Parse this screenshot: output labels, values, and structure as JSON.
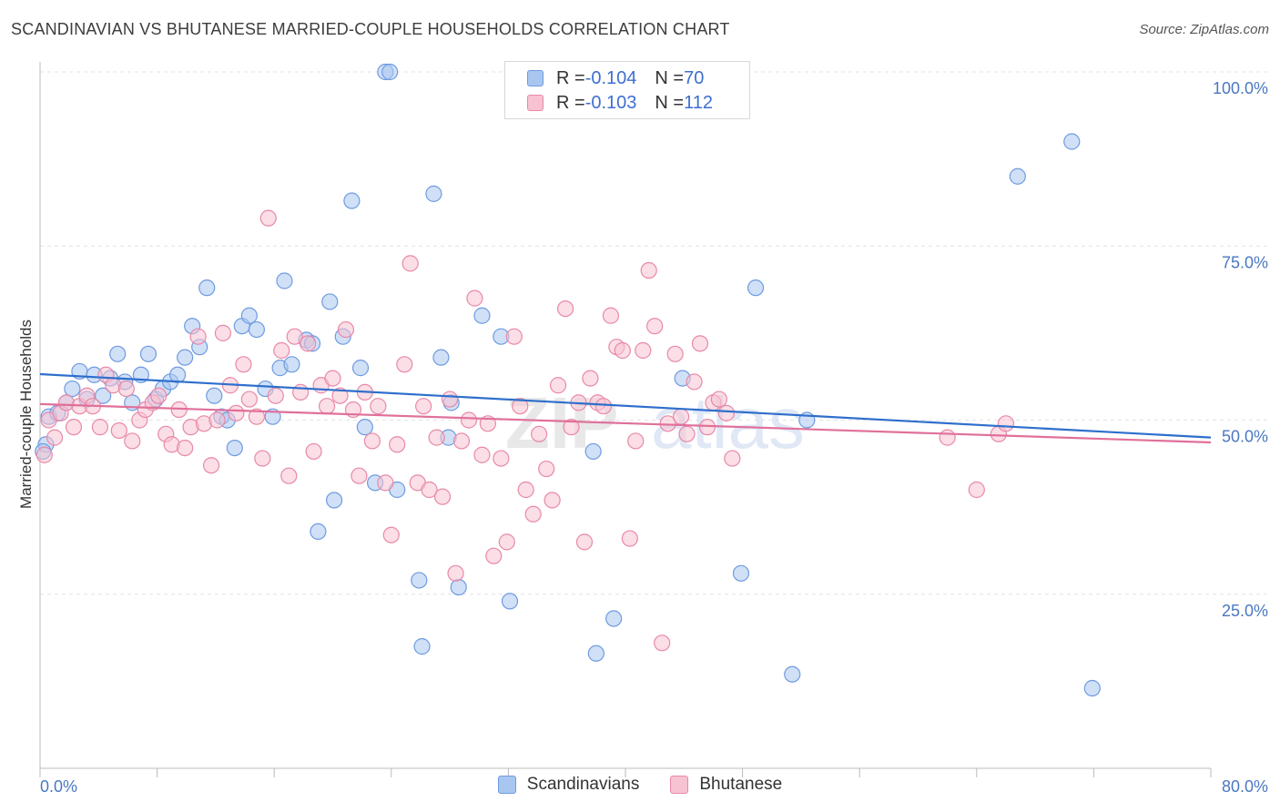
{
  "title": "SCANDINAVIAN VS BHUTANESE MARRIED-COUPLE HOUSEHOLDS CORRELATION CHART",
  "source": "Source: ZipAtlas.com",
  "watermark": {
    "zip": "ZIP",
    "atlas": "atlas"
  },
  "legend": {
    "rows": [
      {
        "r_label": "R = ",
        "r_value": "-0.104",
        "n_label": "N = ",
        "n_value": "70",
        "color": "#a9c6f0",
        "border": "#6f9be0"
      },
      {
        "r_label": "R = ",
        "r_value": "-0.103",
        "n_label": "N = ",
        "n_value": "112",
        "color": "#f7c2d2",
        "border": "#e889a8"
      }
    ]
  },
  "bottom_legend": [
    {
      "label": "Scandinavians",
      "color": "#a9c6f0",
      "border": "#6f9be0"
    },
    {
      "label": "Bhutanese",
      "color": "#f7c2d2",
      "border": "#e889a8"
    }
  ],
  "chart_data": {
    "type": "scatter",
    "title": "SCANDINAVIAN VS BHUTANESE MARRIED-COUPLE HOUSEHOLDS CORRELATION CHART",
    "xlabel": "",
    "ylabel": "Married-couple Households",
    "xlim": [
      0,
      80
    ],
    "ylim": [
      0,
      100
    ],
    "x_tick_labels": [
      "0.0%",
      "80.0%"
    ],
    "y_ticks": [
      25,
      50,
      75,
      100
    ],
    "y_tick_labels": [
      "25.0%",
      "50.0%",
      "75.0%",
      "100.0%"
    ],
    "grid": "horizontal dashed",
    "legend_position": "top-center",
    "series": [
      {
        "name": "Scandinavians",
        "color": "#6f9be0",
        "fill": "#a9c6f0",
        "line_color": "#2e6fcc",
        "trend": {
          "x": [
            0,
            80
          ],
          "y": [
            56.6,
            47.5
          ]
        },
        "points": [
          {
            "x": 0.4,
            "y": 46.5
          },
          {
            "x": 0.6,
            "y": 50.5
          },
          {
            "x": 1.2,
            "y": 51.0
          },
          {
            "x": 1.8,
            "y": 52.5
          },
          {
            "x": 2.2,
            "y": 54.5
          },
          {
            "x": 2.7,
            "y": 57.0
          },
          {
            "x": 3.2,
            "y": 53.0
          },
          {
            "x": 3.7,
            "y": 56.5
          },
          {
            "x": 4.3,
            "y": 53.5
          },
          {
            "x": 4.8,
            "y": 56.0
          },
          {
            "x": 5.3,
            "y": 59.5
          },
          {
            "x": 5.8,
            "y": 55.5
          },
          {
            "x": 6.3,
            "y": 52.5
          },
          {
            "x": 6.9,
            "y": 56.5
          },
          {
            "x": 7.4,
            "y": 59.5
          },
          {
            "x": 7.9,
            "y": 53.0
          },
          {
            "x": 8.4,
            "y": 54.5
          },
          {
            "x": 8.9,
            "y": 55.5
          },
          {
            "x": 9.4,
            "y": 56.5
          },
          {
            "x": 9.9,
            "y": 59.0
          },
          {
            "x": 10.4,
            "y": 63.5
          },
          {
            "x": 10.9,
            "y": 60.5
          },
          {
            "x": 11.4,
            "y": 69.0
          },
          {
            "x": 11.9,
            "y": 53.5
          },
          {
            "x": 12.4,
            "y": 50.5
          },
          {
            "x": 12.8,
            "y": 50.0
          },
          {
            "x": 13.3,
            "y": 46.0
          },
          {
            "x": 13.8,
            "y": 63.5
          },
          {
            "x": 14.3,
            "y": 65.0
          },
          {
            "x": 14.8,
            "y": 63.0
          },
          {
            "x": 15.4,
            "y": 54.5
          },
          {
            "x": 15.9,
            "y": 50.5
          },
          {
            "x": 16.4,
            "y": 57.5
          },
          {
            "x": 16.7,
            "y": 70.0
          },
          {
            "x": 17.2,
            "y": 58.0
          },
          {
            "x": 18.2,
            "y": 61.5
          },
          {
            "x": 18.6,
            "y": 61.0
          },
          {
            "x": 19.0,
            "y": 34.0
          },
          {
            "x": 19.8,
            "y": 67.0
          },
          {
            "x": 20.1,
            "y": 38.5
          },
          {
            "x": 20.7,
            "y": 62.0
          },
          {
            "x": 21.3,
            "y": 81.5
          },
          {
            "x": 21.9,
            "y": 57.5
          },
          {
            "x": 22.2,
            "y": 49.0
          },
          {
            "x": 22.9,
            "y": 41.0
          },
          {
            "x": 23.6,
            "y": 100.0
          },
          {
            "x": 23.9,
            "y": 100.0
          },
          {
            "x": 24.4,
            "y": 40.0
          },
          {
            "x": 25.9,
            "y": 27.0
          },
          {
            "x": 26.1,
            "y": 17.5
          },
          {
            "x": 26.9,
            "y": 82.5
          },
          {
            "x": 27.4,
            "y": 59.0
          },
          {
            "x": 27.9,
            "y": 47.5
          },
          {
            "x": 28.1,
            "y": 52.5
          },
          {
            "x": 28.6,
            "y": 26.0
          },
          {
            "x": 30.2,
            "y": 65.0
          },
          {
            "x": 31.5,
            "y": 62.0
          },
          {
            "x": 32.1,
            "y": 24.0
          },
          {
            "x": 37.8,
            "y": 45.5
          },
          {
            "x": 38.0,
            "y": 16.5
          },
          {
            "x": 39.2,
            "y": 21.5
          },
          {
            "x": 43.9,
            "y": 56.0
          },
          {
            "x": 47.9,
            "y": 28.0
          },
          {
            "x": 48.9,
            "y": 69.0
          },
          {
            "x": 51.4,
            "y": 13.5
          },
          {
            "x": 52.4,
            "y": 50.0
          },
          {
            "x": 66.8,
            "y": 85.0
          },
          {
            "x": 70.5,
            "y": 90.0
          },
          {
            "x": 71.9,
            "y": 11.5
          },
          {
            "x": 0.2,
            "y": 45.5
          }
        ]
      },
      {
        "name": "Bhutanese",
        "color": "#e889a8",
        "fill": "#f7c2d2",
        "line_color": "#e0709a",
        "trend": {
          "x": [
            0,
            80
          ],
          "y": [
            52.3,
            46.8
          ]
        },
        "points": [
          {
            "x": 0.3,
            "y": 45.0
          },
          {
            "x": 0.6,
            "y": 50.0
          },
          {
            "x": 1.0,
            "y": 47.5
          },
          {
            "x": 1.4,
            "y": 51.0
          },
          {
            "x": 1.8,
            "y": 52.5
          },
          {
            "x": 2.3,
            "y": 49.0
          },
          {
            "x": 2.7,
            "y": 52.0
          },
          {
            "x": 3.2,
            "y": 53.5
          },
          {
            "x": 3.6,
            "y": 52.0
          },
          {
            "x": 4.1,
            "y": 49.0
          },
          {
            "x": 4.5,
            "y": 56.5
          },
          {
            "x": 5.0,
            "y": 55.0
          },
          {
            "x": 5.4,
            "y": 48.5
          },
          {
            "x": 5.9,
            "y": 54.5
          },
          {
            "x": 6.3,
            "y": 47.0
          },
          {
            "x": 6.8,
            "y": 50.0
          },
          {
            "x": 7.2,
            "y": 51.5
          },
          {
            "x": 7.7,
            "y": 52.5
          },
          {
            "x": 8.1,
            "y": 53.5
          },
          {
            "x": 8.6,
            "y": 48.0
          },
          {
            "x": 9.0,
            "y": 46.5
          },
          {
            "x": 9.5,
            "y": 51.5
          },
          {
            "x": 9.9,
            "y": 46.0
          },
          {
            "x": 10.3,
            "y": 49.0
          },
          {
            "x": 10.8,
            "y": 62.0
          },
          {
            "x": 11.2,
            "y": 49.5
          },
          {
            "x": 11.7,
            "y": 43.5
          },
          {
            "x": 12.1,
            "y": 50.0
          },
          {
            "x": 12.5,
            "y": 62.5
          },
          {
            "x": 13.0,
            "y": 55.0
          },
          {
            "x": 13.4,
            "y": 51.0
          },
          {
            "x": 13.9,
            "y": 58.0
          },
          {
            "x": 14.3,
            "y": 53.0
          },
          {
            "x": 14.8,
            "y": 50.5
          },
          {
            "x": 15.2,
            "y": 44.5
          },
          {
            "x": 15.6,
            "y": 79.0
          },
          {
            "x": 16.1,
            "y": 53.5
          },
          {
            "x": 16.5,
            "y": 60.0
          },
          {
            "x": 17.0,
            "y": 42.0
          },
          {
            "x": 17.4,
            "y": 62.0
          },
          {
            "x": 17.8,
            "y": 54.0
          },
          {
            "x": 18.3,
            "y": 61.0
          },
          {
            "x": 18.7,
            "y": 45.5
          },
          {
            "x": 19.2,
            "y": 55.0
          },
          {
            "x": 19.6,
            "y": 52.0
          },
          {
            "x": 20.0,
            "y": 56.0
          },
          {
            "x": 20.5,
            "y": 53.5
          },
          {
            "x": 20.9,
            "y": 63.0
          },
          {
            "x": 21.4,
            "y": 51.5
          },
          {
            "x": 21.8,
            "y": 42.0
          },
          {
            "x": 22.2,
            "y": 54.0
          },
          {
            "x": 22.7,
            "y": 47.0
          },
          {
            "x": 23.1,
            "y": 52.0
          },
          {
            "x": 23.6,
            "y": 41.0
          },
          {
            "x": 24.0,
            "y": 33.5
          },
          {
            "x": 24.4,
            "y": 46.5
          },
          {
            "x": 24.9,
            "y": 58.0
          },
          {
            "x": 25.3,
            "y": 72.5
          },
          {
            "x": 25.8,
            "y": 41.0
          },
          {
            "x": 26.2,
            "y": 52.0
          },
          {
            "x": 26.6,
            "y": 40.0
          },
          {
            "x": 27.1,
            "y": 47.5
          },
          {
            "x": 27.5,
            "y": 39.0
          },
          {
            "x": 28.0,
            "y": 53.0
          },
          {
            "x": 28.4,
            "y": 28.0
          },
          {
            "x": 28.8,
            "y": 47.0
          },
          {
            "x": 29.3,
            "y": 50.0
          },
          {
            "x": 29.7,
            "y": 67.5
          },
          {
            "x": 30.2,
            "y": 45.0
          },
          {
            "x": 30.6,
            "y": 49.5
          },
          {
            "x": 31.0,
            "y": 30.5
          },
          {
            "x": 31.5,
            "y": 44.5
          },
          {
            "x": 31.9,
            "y": 32.5
          },
          {
            "x": 32.4,
            "y": 62.0
          },
          {
            "x": 32.8,
            "y": 52.0
          },
          {
            "x": 33.2,
            "y": 40.0
          },
          {
            "x": 33.7,
            "y": 36.5
          },
          {
            "x": 34.1,
            "y": 48.0
          },
          {
            "x": 34.6,
            "y": 43.0
          },
          {
            "x": 35.0,
            "y": 38.5
          },
          {
            "x": 35.4,
            "y": 55.0
          },
          {
            "x": 35.9,
            "y": 66.0
          },
          {
            "x": 36.3,
            "y": 49.0
          },
          {
            "x": 36.8,
            "y": 52.5
          },
          {
            "x": 37.2,
            "y": 32.5
          },
          {
            "x": 37.6,
            "y": 56.0
          },
          {
            "x": 38.1,
            "y": 52.5
          },
          {
            "x": 38.5,
            "y": 52.0
          },
          {
            "x": 39.0,
            "y": 65.0
          },
          {
            "x": 39.4,
            "y": 60.5
          },
          {
            "x": 39.8,
            "y": 60.0
          },
          {
            "x": 40.3,
            "y": 33.0
          },
          {
            "x": 40.7,
            "y": 47.0
          },
          {
            "x": 41.2,
            "y": 60.0
          },
          {
            "x": 41.6,
            "y": 71.5
          },
          {
            "x": 42.0,
            "y": 63.5
          },
          {
            "x": 42.5,
            "y": 18.0
          },
          {
            "x": 42.9,
            "y": 49.5
          },
          {
            "x": 43.4,
            "y": 59.5
          },
          {
            "x": 43.8,
            "y": 50.5
          },
          {
            "x": 44.2,
            "y": 48.0
          },
          {
            "x": 44.7,
            "y": 55.5
          },
          {
            "x": 45.1,
            "y": 61.0
          },
          {
            "x": 45.6,
            "y": 49.0
          },
          {
            "x": 46.0,
            "y": 52.5
          },
          {
            "x": 46.4,
            "y": 53.0
          },
          {
            "x": 46.9,
            "y": 51.0
          },
          {
            "x": 47.3,
            "y": 44.5
          },
          {
            "x": 64.0,
            "y": 40.0
          },
          {
            "x": 65.5,
            "y": 48.0
          },
          {
            "x": 66.0,
            "y": 49.5
          },
          {
            "x": 62.0,
            "y": 47.5
          }
        ]
      }
    ]
  }
}
